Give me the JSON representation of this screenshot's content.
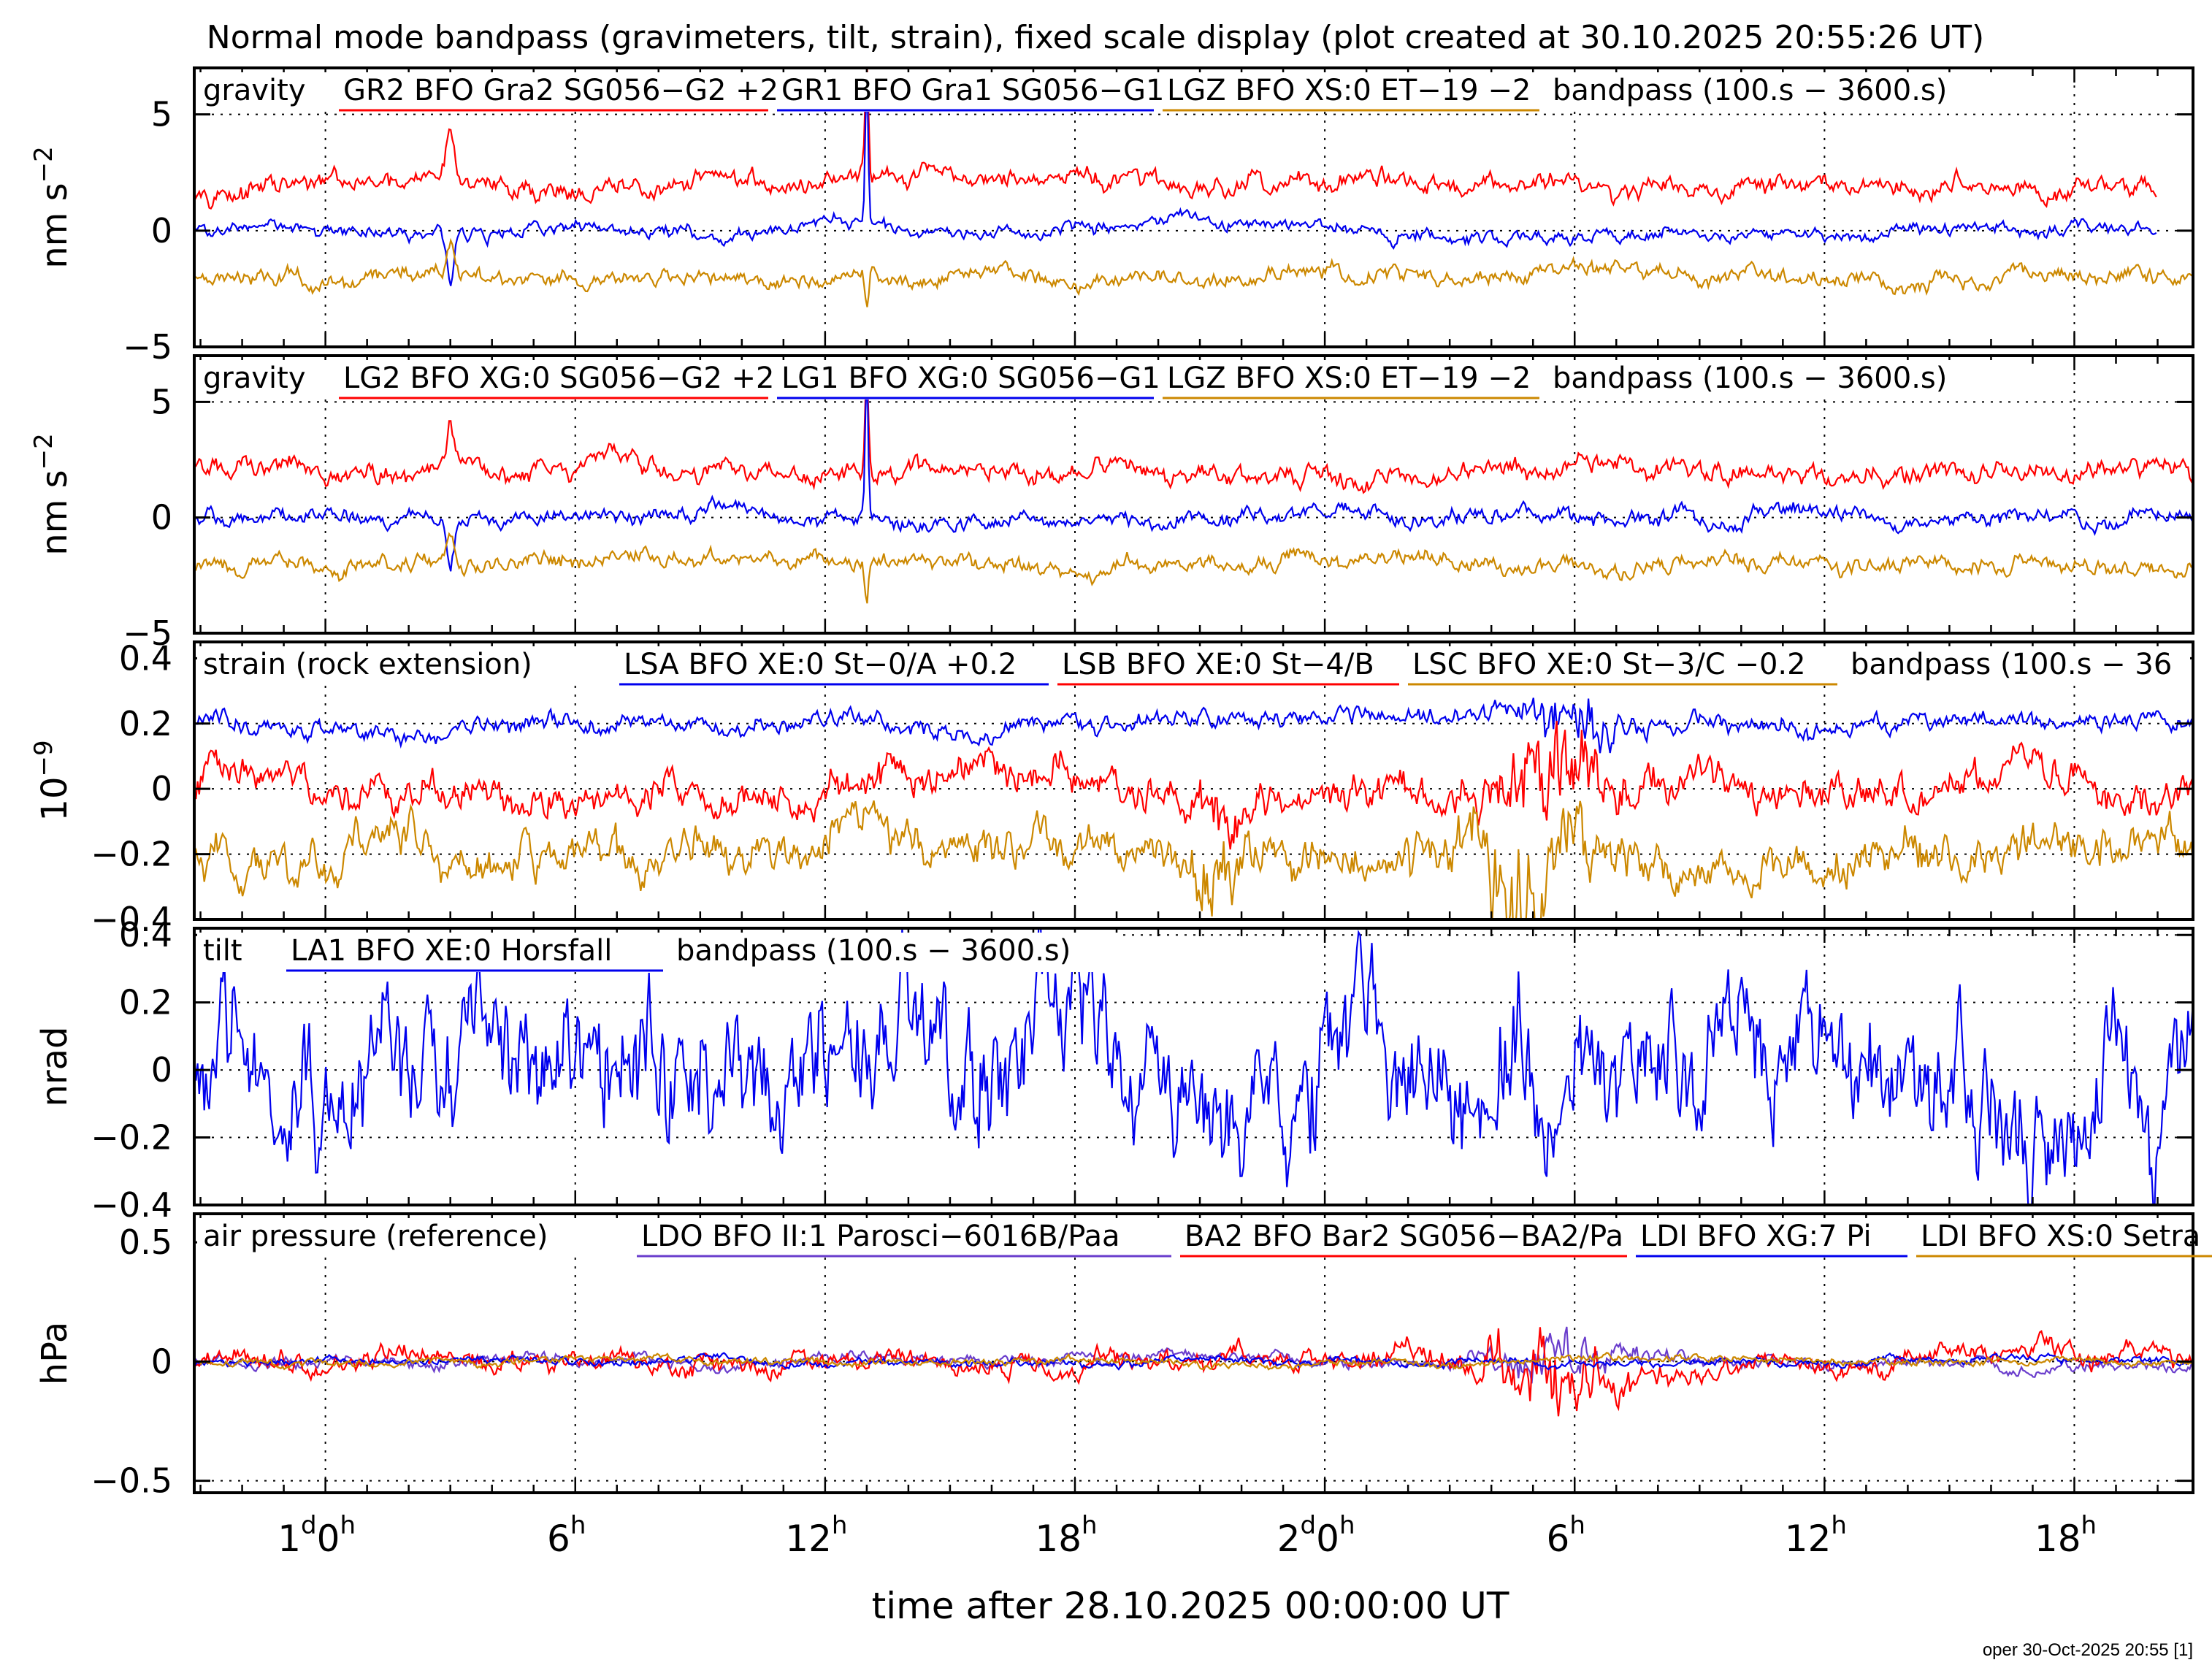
{
  "title": "Normal mode bandpass (gravimeters, tilt, strain), fixed scale display (plot created at 30.10.2025 20:55:26 UT)",
  "xlabel": "time after 28.10.2025 00:00:00 UT",
  "signature": "oper 30-Oct-2025 20:55 [1]",
  "colors": {
    "red": "#ff0000",
    "blue": "#0000ee",
    "orange": "#cc8800",
    "purple": "#6a3dcc",
    "frame": "#000000"
  },
  "x_ticks": [
    {
      "hour": 24,
      "main": "1",
      "sup1": "d",
      "main2": "0",
      "sup2": "h"
    },
    {
      "hour": 30,
      "main": "6",
      "sup1": "h",
      "main2": "",
      "sup2": ""
    },
    {
      "hour": 36,
      "main": "12",
      "sup1": "h",
      "main2": "",
      "sup2": ""
    },
    {
      "hour": 42,
      "main": "18",
      "sup1": "h",
      "main2": "",
      "sup2": ""
    },
    {
      "hour": 48,
      "main": "2",
      "sup1": "d",
      "main2": "0",
      "sup2": "h"
    },
    {
      "hour": 54,
      "main": "6",
      "sup1": "h",
      "main2": "",
      "sup2": ""
    },
    {
      "hour": 60,
      "main": "12",
      "sup1": "h",
      "main2": "",
      "sup2": ""
    },
    {
      "hour": 66,
      "main": "18",
      "sup1": "h",
      "main2": "",
      "sup2": ""
    }
  ],
  "chart_data": [
    {
      "type": "line",
      "ylabel": "nm s",
      "ylabel_sup": "−2",
      "ylim": [
        -5,
        7
      ],
      "yticks": [
        5,
        0,
        -5
      ],
      "ytick_labels": [
        "5",
        "0",
        "−5"
      ],
      "xlim_hours": [
        20.85,
        68.85
      ],
      "grid": true,
      "legend_prefix": "gravity",
      "legend_suffix": "bandpass (100.s − 3600.s)",
      "series": [
        {
          "name": "GR2 BFO Gra2 SG056−G2 +2",
          "color": "red",
          "offset": 2,
          "noise": 0.32,
          "end_hour": 68.0,
          "events": [
            [
              27.0,
              2.2,
              0.12
            ],
            [
              37.0,
              4.5,
              0.06
            ]
          ]
        },
        {
          "name": "GR1 BFO Gra1 SG056−G1",
          "color": "blue",
          "offset": 0,
          "noise": 0.26,
          "end_hour": 68.0,
          "events": [
            [
              27.0,
              -2.2,
              0.12
            ],
            [
              37.0,
              6.5,
              0.05
            ]
          ]
        },
        {
          "name": "LGZ BFO XS:0 ET−19 −2",
          "color": "orange",
          "offset": -2,
          "noise": 0.26,
          "end_hour": 68.85,
          "events": [
            [
              27.0,
              1.2,
              0.12
            ],
            [
              37.0,
              -1.8,
              0.06
            ]
          ]
        }
      ]
    },
    {
      "type": "line",
      "ylabel": "nm s",
      "ylabel_sup": "−2",
      "ylim": [
        -5,
        7
      ],
      "yticks": [
        5,
        0,
        -5
      ],
      "ytick_labels": [
        "5",
        "0",
        "−5"
      ],
      "xlim_hours": [
        20.85,
        68.85
      ],
      "grid": true,
      "legend_prefix": "gravity",
      "legend_suffix": "bandpass (100.s − 3600.s)",
      "series": [
        {
          "name": "LG2 BFO XG:0 SG056−G2 +2",
          "color": "red",
          "offset": 2,
          "noise": 0.32,
          "end_hour": 68.85,
          "events": [
            [
              27.0,
              2.2,
              0.12
            ],
            [
              37.0,
              4.5,
              0.06
            ]
          ]
        },
        {
          "name": "LG1 BFO XG:0 SG056−G1",
          "color": "blue",
          "offset": 0,
          "noise": 0.26,
          "end_hour": 68.85,
          "events": [
            [
              27.0,
              -2.2,
              0.12
            ],
            [
              37.0,
              6.5,
              0.05
            ]
          ]
        },
        {
          "name": "LGZ BFO XS:0 ET−19 −2",
          "color": "orange",
          "offset": -2,
          "noise": 0.26,
          "end_hour": 68.85,
          "events": [
            [
              27.0,
              1.2,
              0.12
            ],
            [
              37.0,
              -1.8,
              0.06
            ]
          ]
        }
      ]
    },
    {
      "type": "line",
      "ylabel": "10",
      "ylabel_sup": "−9",
      "ylim": [
        -0.4,
        0.45
      ],
      "yticks": [
        0.4,
        0.2,
        0,
        -0.2,
        -0.4
      ],
      "ytick_labels": [
        "0.4",
        "0.2",
        "0",
        "−0.2",
        "−0.4"
      ],
      "xlim_hours": [
        20.85,
        68.85
      ],
      "grid": true,
      "legend_prefix": "strain (rock extension)",
      "legend_suffix": "bandpass (100.s − 36",
      "series": [
        {
          "name": "LSA BFO XE:0 St−0/A +0.2",
          "color": "blue",
          "offset": 0.2,
          "noise": 0.022,
          "end_hour": 68.85,
          "events": [
            [
              54.0,
              0.06,
              1.2
            ]
          ]
        },
        {
          "name": "LSB BFO XE:0 St−4/B",
          "color": "red",
          "offset": 0,
          "noise": 0.045,
          "end_hour": 68.85,
          "events": [
            [
              53.4,
              0.09,
              1.4
            ],
            [
              45.5,
              0.06,
              0.7
            ]
          ]
        },
        {
          "name": "LSC BFO XE:0 St−3/C −0.2",
          "color": "orange",
          "offset": -0.2,
          "noise": 0.05,
          "end_hour": 68.85,
          "events": [
            [
              52.8,
              0.13,
              1.4
            ],
            [
              45.5,
              0.07,
              0.7
            ]
          ]
        }
      ]
    },
    {
      "type": "line",
      "ylabel": "nrad",
      "ylabel_sup": "",
      "ylim": [
        -0.4,
        0.42
      ],
      "yticks": [
        0.4,
        0.2,
        0,
        -0.2,
        -0.4
      ],
      "ytick_labels": [
        "0.4",
        "0.2",
        "0",
        "−0.2",
        "−0.4"
      ],
      "xlim_hours": [
        20.85,
        68.85
      ],
      "grid": true,
      "legend_prefix": "tilt",
      "legend_suffix": "bandpass (100.s − 3600.s)",
      "series": [
        {
          "name": "LA1 BFO XE:0 Horsfall",
          "color": "blue",
          "offset": 0,
          "noise": 0.14,
          "end_hour": 68.85,
          "events": []
        }
      ]
    },
    {
      "type": "line",
      "ylabel": "hPa",
      "ylabel_sup": "",
      "ylim": [
        -0.55,
        0.62
      ],
      "yticks": [
        0.5,
        0,
        -0.5
      ],
      "ytick_labels": [
        "0.5",
        "0",
        "−0.5"
      ],
      "xlim_hours": [
        20.85,
        68.85
      ],
      "grid": true,
      "legend_prefix": "air pressure (reference)",
      "legend_suffix": "",
      "series": [
        {
          "name": "LDO BFO II:1 Parosci−6016B/Paa",
          "color": "purple",
          "offset": 0,
          "noise": 0.02,
          "end_hour": 68.85,
          "events": [
            [
              53.7,
              0.09,
              1.6
            ]
          ]
        },
        {
          "name": "BA2 BFO Bar2 SG056−BA2/Pa",
          "color": "red",
          "offset": 0,
          "noise": 0.035,
          "end_hour": 68.85,
          "events": [
            [
              53.5,
              0.12,
              1.7
            ]
          ]
        },
        {
          "name": "LDI BFO XG:7 Pi",
          "color": "blue",
          "offset": 0,
          "noise": 0.012,
          "end_hour": 68.85,
          "events": []
        },
        {
          "name": "LDI BFO XS:0 Setra",
          "color": "orange",
          "offset": 0,
          "noise": 0.012,
          "end_hour": 68.85,
          "events": []
        }
      ]
    }
  ]
}
